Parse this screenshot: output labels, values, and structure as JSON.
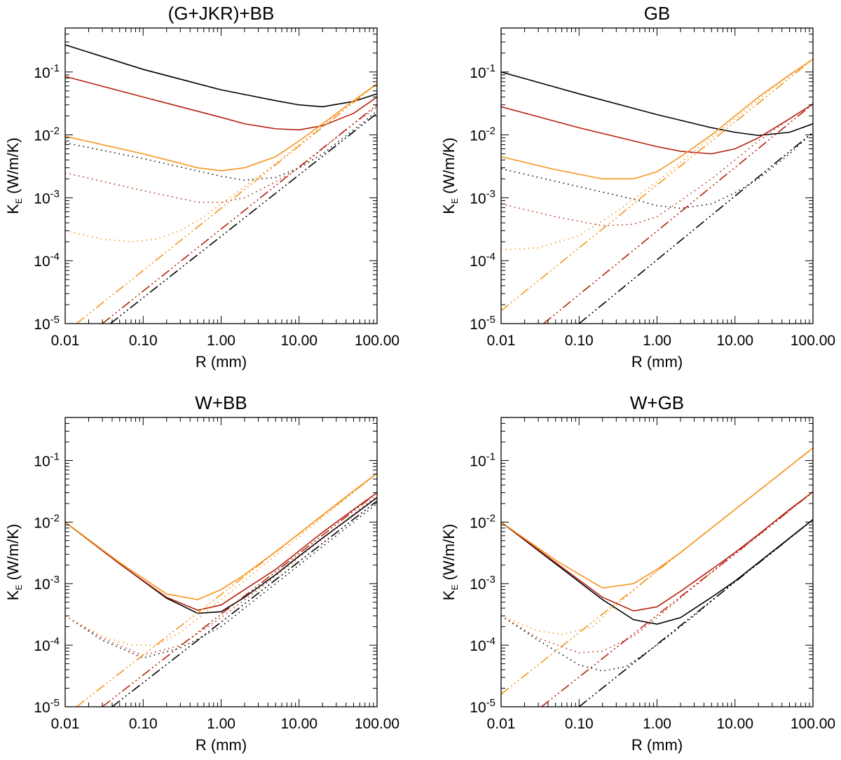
{
  "chart_data": [
    {
      "type": "line",
      "title": "(G+JKR)+BB",
      "xlabel": "R (mm)",
      "ylabel_main": "K",
      "ylabel_sub": "E",
      "ylabel_units": " (W/m/K)",
      "xscale": "log",
      "yscale": "log",
      "xlim": [
        0.01,
        100
      ],
      "ylim": [
        1e-05,
        0.5
      ],
      "xticks": [
        "0.01",
        "0.10",
        "1.00",
        "10.00",
        "100.00"
      ],
      "yticks": [
        {
          "base": "10",
          "exp": "-5"
        },
        {
          "base": "10",
          "exp": "-4"
        },
        {
          "base": "10",
          "exp": "-3"
        },
        {
          "base": "10",
          "exp": "-2"
        },
        {
          "base": "10",
          "exp": "-1"
        }
      ],
      "series": [
        {
          "color": "#000000",
          "dash": "solid",
          "x": [
            0.01,
            0.1,
            1,
            5,
            10,
            20,
            50,
            100
          ],
          "y": [
            0.27,
            0.11,
            0.052,
            0.035,
            0.03,
            0.028,
            0.034,
            0.045
          ]
        },
        {
          "color": "#b5200d",
          "dash": "solid",
          "x": [
            0.01,
            0.1,
            1,
            2,
            5,
            10,
            20,
            50,
            100
          ],
          "y": [
            0.085,
            0.04,
            0.019,
            0.015,
            0.0125,
            0.012,
            0.014,
            0.022,
            0.04
          ]
        },
        {
          "color": "#f5941e",
          "dash": "solid",
          "x": [
            0.01,
            0.1,
            0.5,
            1,
            2,
            5,
            10,
            20,
            50,
            100
          ],
          "y": [
            0.0095,
            0.005,
            0.003,
            0.0027,
            0.003,
            0.0045,
            0.008,
            0.015,
            0.035,
            0.065
          ]
        },
        {
          "color": "#000000",
          "dash": "dot",
          "x": [
            0.01,
            0.1,
            1,
            2,
            5,
            10,
            20,
            50,
            100
          ],
          "y": [
            0.0075,
            0.0042,
            0.0022,
            0.0019,
            0.0021,
            0.003,
            0.005,
            0.012,
            0.024
          ]
        },
        {
          "color": "#b5200d",
          "dash": "dot",
          "x": [
            0.01,
            0.1,
            0.5,
            1,
            2,
            5,
            10,
            20,
            50,
            100
          ],
          "y": [
            0.0025,
            0.0013,
            0.00085,
            0.00085,
            0.001,
            0.0018,
            0.003,
            0.006,
            0.015,
            0.028
          ]
        },
        {
          "color": "#f5941e",
          "dash": "dot",
          "x": [
            0.01,
            0.03,
            0.07,
            0.15,
            0.3,
            0.6,
            1,
            2,
            5,
            10,
            20,
            50,
            100
          ],
          "y": [
            0.0003,
            0.00022,
            0.0002,
            0.00022,
            0.0003,
            0.0005,
            0.0008,
            0.0015,
            0.0035,
            0.007,
            0.014,
            0.035,
            0.065
          ]
        },
        {
          "color": "#000000",
          "dash": "dashdot",
          "x": [
            0.038,
            100
          ],
          "y": [
            1e-05,
            0.022
          ]
        },
        {
          "color": "#b5200d",
          "dash": "dashdot",
          "x": [
            0.03,
            100
          ],
          "y": [
            1e-05,
            0.03
          ]
        },
        {
          "color": "#f5941e",
          "dash": "dashdot",
          "x": [
            0.014,
            100
          ],
          "y": [
            1e-05,
            0.065
          ]
        }
      ]
    },
    {
      "type": "line",
      "title": "GB",
      "xlabel": "R (mm)",
      "ylabel_main": "K",
      "ylabel_sub": "E",
      "ylabel_units": " (W/m/K)",
      "xscale": "log",
      "yscale": "log",
      "xlim": [
        0.01,
        100
      ],
      "ylim": [
        1e-05,
        0.5
      ],
      "xticks": [
        "0.01",
        "0.10",
        "1.00",
        "10.00",
        "100.00"
      ],
      "yticks": [
        {
          "base": "10",
          "exp": "-5"
        },
        {
          "base": "10",
          "exp": "-4"
        },
        {
          "base": "10",
          "exp": "-3"
        },
        {
          "base": "10",
          "exp": "-2"
        },
        {
          "base": "10",
          "exp": "-1"
        }
      ],
      "series": [
        {
          "color": "#000000",
          "dash": "solid",
          "x": [
            0.01,
            0.1,
            1,
            5,
            10,
            20,
            50,
            100
          ],
          "y": [
            0.1,
            0.045,
            0.021,
            0.013,
            0.011,
            0.0098,
            0.011,
            0.015
          ]
        },
        {
          "color": "#b5200d",
          "dash": "solid",
          "x": [
            0.01,
            0.1,
            1,
            2,
            5,
            10,
            20,
            50,
            100
          ],
          "y": [
            0.028,
            0.013,
            0.0065,
            0.0055,
            0.005,
            0.006,
            0.009,
            0.018,
            0.031
          ]
        },
        {
          "color": "#f5941e",
          "dash": "solid",
          "x": [
            0.01,
            0.05,
            0.2,
            0.5,
            1,
            2,
            5,
            10,
            20,
            50,
            100
          ],
          "y": [
            0.0045,
            0.0028,
            0.002,
            0.002,
            0.0026,
            0.0045,
            0.01,
            0.02,
            0.04,
            0.09,
            0.16
          ]
        },
        {
          "color": "#000000",
          "dash": "dot",
          "x": [
            0.01,
            0.1,
            0.5,
            1,
            2,
            5,
            10,
            20,
            50,
            100
          ],
          "y": [
            0.0029,
            0.0015,
            0.00095,
            0.00075,
            0.00068,
            0.0008,
            0.0012,
            0.002,
            0.005,
            0.011
          ]
        },
        {
          "color": "#b5200d",
          "dash": "dot",
          "x": [
            0.01,
            0.05,
            0.2,
            0.5,
            1,
            2,
            5,
            10,
            20,
            50,
            100
          ],
          "y": [
            0.0008,
            0.0005,
            0.00036,
            0.00038,
            0.0005,
            0.0009,
            0.002,
            0.004,
            0.008,
            0.018,
            0.031
          ]
        },
        {
          "color": "#f5941e",
          "dash": "dot",
          "x": [
            0.01,
            0.03,
            0.1,
            0.3,
            1,
            3,
            10,
            30,
            100
          ],
          "y": [
            0.00015,
            0.00016,
            0.00025,
            0.0006,
            0.0018,
            0.0055,
            0.018,
            0.055,
            0.16
          ]
        },
        {
          "color": "#000000",
          "dash": "dashdot",
          "x": [
            0.1,
            100
          ],
          "y": [
            1e-05,
            0.011
          ]
        },
        {
          "color": "#b5200d",
          "dash": "dashdot",
          "x": [
            0.035,
            100
          ],
          "y": [
            1e-05,
            0.031
          ]
        },
        {
          "color": "#f5941e",
          "dash": "dashdot",
          "x": [
            0.01,
            100
          ],
          "y": [
            1.6e-05,
            0.16
          ]
        }
      ]
    },
    {
      "type": "line",
      "title": "W+BB",
      "xlabel": "R (mm)",
      "ylabel_main": "K",
      "ylabel_sub": "E",
      "ylabel_units": " (W/m/K)",
      "xscale": "log",
      "yscale": "log",
      "xlim": [
        0.01,
        100
      ],
      "ylim": [
        1e-05,
        0.5
      ],
      "xticks": [
        "0.01",
        "0.10",
        "1.00",
        "10.00",
        "100.00"
      ],
      "yticks": [
        {
          "base": "10",
          "exp": "-5"
        },
        {
          "base": "10",
          "exp": "-4"
        },
        {
          "base": "10",
          "exp": "-3"
        },
        {
          "base": "10",
          "exp": "-2"
        },
        {
          "base": "10",
          "exp": "-1"
        }
      ],
      "series": [
        {
          "color": "#000000",
          "dash": "solid",
          "x": [
            0.01,
            0.05,
            0.2,
            0.5,
            1,
            2,
            5,
            10,
            20,
            50,
            100
          ],
          "y": [
            0.01,
            0.0021,
            0.00058,
            0.00033,
            0.00035,
            0.0006,
            0.0014,
            0.0028,
            0.0055,
            0.013,
            0.025
          ]
        },
        {
          "color": "#b5200d",
          "dash": "solid",
          "x": [
            0.01,
            0.05,
            0.2,
            0.5,
            1,
            2,
            5,
            10,
            20,
            50,
            100
          ],
          "y": [
            0.01,
            0.0021,
            0.0006,
            0.00037,
            0.00045,
            0.0008,
            0.0017,
            0.0034,
            0.0068,
            0.016,
            0.03
          ]
        },
        {
          "color": "#f5941e",
          "dash": "solid",
          "x": [
            0.01,
            0.05,
            0.2,
            0.5,
            1,
            2,
            5,
            10,
            20,
            50,
            100
          ],
          "y": [
            0.01,
            0.0022,
            0.00068,
            0.00055,
            0.0008,
            0.0014,
            0.0033,
            0.0065,
            0.013,
            0.032,
            0.062
          ]
        },
        {
          "color": "#000000",
          "dash": "dot",
          "x": [
            0.01,
            0.03,
            0.1,
            0.3,
            1,
            3,
            10,
            30,
            100
          ],
          "y": [
            0.0003,
            0.00012,
            6.2e-05,
            9e-05,
            0.0002,
            0.0006,
            0.002,
            0.006,
            0.02
          ]
        },
        {
          "color": "#b5200d",
          "dash": "dot",
          "x": [
            0.01,
            0.03,
            0.1,
            0.3,
            1,
            3,
            10,
            30,
            100
          ],
          "y": [
            0.0003,
            0.00013,
            6.8e-05,
            0.0001,
            0.00028,
            0.0008,
            0.0027,
            0.008,
            0.027
          ]
        },
        {
          "color": "#f5941e",
          "dash": "dot",
          "x": [
            0.01,
            0.03,
            0.07,
            0.15,
            0.3,
            1,
            3,
            10,
            30,
            100
          ],
          "y": [
            0.0003,
            0.00014,
            0.0001,
            0.0001,
            0.00016,
            0.00055,
            0.0017,
            0.0058,
            0.018,
            0.062
          ]
        },
        {
          "color": "#000000",
          "dash": "dashdot",
          "x": [
            0.04,
            100
          ],
          "y": [
            1e-05,
            0.022
          ]
        },
        {
          "color": "#b5200d",
          "dash": "dashdot",
          "x": [
            0.03,
            100
          ],
          "y": [
            1e-05,
            0.03
          ]
        },
        {
          "color": "#f5941e",
          "dash": "dashdot",
          "x": [
            0.014,
            100
          ],
          "y": [
            1e-05,
            0.062
          ]
        }
      ]
    },
    {
      "type": "line",
      "title": "W+GB",
      "xlabel": "R (mm)",
      "ylabel_main": "K",
      "ylabel_sub": "E",
      "ylabel_units": " (W/m/K)",
      "xscale": "log",
      "yscale": "log",
      "xlim": [
        0.01,
        100
      ],
      "ylim": [
        1e-05,
        0.5
      ],
      "xticks": [
        "0.01",
        "0.10",
        "1.00",
        "10.00",
        "100.00"
      ],
      "yticks": [
        {
          "base": "10",
          "exp": "-5"
        },
        {
          "base": "10",
          "exp": "-4"
        },
        {
          "base": "10",
          "exp": "-3"
        },
        {
          "base": "10",
          "exp": "-2"
        },
        {
          "base": "10",
          "exp": "-1"
        }
      ],
      "series": [
        {
          "color": "#000000",
          "dash": "solid",
          "x": [
            0.01,
            0.05,
            0.2,
            0.5,
            1,
            2,
            5,
            10,
            20,
            50,
            100
          ],
          "y": [
            0.01,
            0.0021,
            0.00055,
            0.00026,
            0.00022,
            0.00028,
            0.0006,
            0.0011,
            0.0022,
            0.0055,
            0.011
          ]
        },
        {
          "color": "#b5200d",
          "dash": "solid",
          "x": [
            0.01,
            0.05,
            0.2,
            0.5,
            1,
            2,
            5,
            10,
            20,
            50,
            100
          ],
          "y": [
            0.01,
            0.0022,
            0.0006,
            0.00036,
            0.00042,
            0.00075,
            0.0017,
            0.0032,
            0.0063,
            0.016,
            0.031
          ]
        },
        {
          "color": "#f5941e",
          "dash": "solid",
          "x": [
            0.01,
            0.05,
            0.2,
            0.5,
            1,
            2,
            5,
            10,
            20,
            50,
            100
          ],
          "y": [
            0.01,
            0.0024,
            0.00085,
            0.001,
            0.0017,
            0.0032,
            0.008,
            0.016,
            0.032,
            0.08,
            0.16
          ]
        },
        {
          "color": "#000000",
          "dash": "dot",
          "x": [
            0.01,
            0.03,
            0.1,
            0.2,
            0.4,
            1,
            3,
            10,
            30,
            100
          ],
          "y": [
            0.0003,
            0.00012,
            4.8e-05,
            3.8e-05,
            4.5e-05,
            0.0001,
            0.0003,
            0.0011,
            0.0032,
            0.011
          ]
        },
        {
          "color": "#b5200d",
          "dash": "dot",
          "x": [
            0.01,
            0.03,
            0.1,
            0.2,
            0.5,
            1,
            3,
            10,
            30,
            100
          ],
          "y": [
            0.0003,
            0.00013,
            7.5e-05,
            8e-05,
            0.00014,
            0.00028,
            0.0009,
            0.003,
            0.009,
            0.031
          ]
        },
        {
          "color": "#f5941e",
          "dash": "dot",
          "x": [
            0.01,
            0.03,
            0.06,
            0.15,
            0.3,
            1,
            3,
            10,
            30,
            100
          ],
          "y": [
            0.0003,
            0.00017,
            0.00015,
            0.0002,
            0.00045,
            0.0016,
            0.0048,
            0.016,
            0.048,
            0.16
          ]
        },
        {
          "color": "#000000",
          "dash": "dashdot",
          "x": [
            0.1,
            100
          ],
          "y": [
            1e-05,
            0.011
          ]
        },
        {
          "color": "#b5200d",
          "dash": "dashdot",
          "x": [
            0.033,
            100
          ],
          "y": [
            1e-05,
            0.031
          ]
        },
        {
          "color": "#f5941e",
          "dash": "dashdot",
          "x": [
            0.01,
            100
          ],
          "y": [
            1.6e-05,
            0.16
          ]
        }
      ]
    }
  ]
}
